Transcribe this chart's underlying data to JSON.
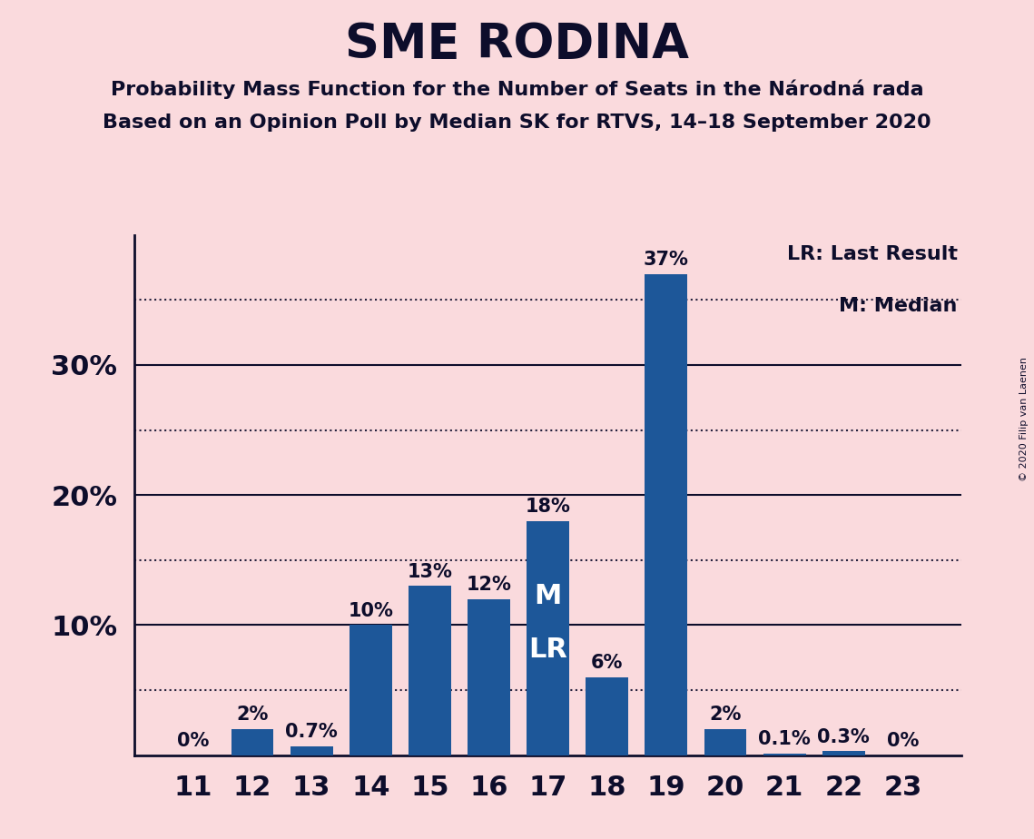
{
  "title": "SME RODINA",
  "subtitle1": "Probability Mass Function for the Number of Seats in the Národná rada",
  "subtitle2": "Based on an Opinion Poll by Median SK for RTVS, 14–18 September 2020",
  "copyright": "© 2020 Filip van Laenen",
  "categories": [
    11,
    12,
    13,
    14,
    15,
    16,
    17,
    18,
    19,
    20,
    21,
    22,
    23
  ],
  "values": [
    0.0,
    2.0,
    0.7,
    10.0,
    13.0,
    12.0,
    18.0,
    6.0,
    37.0,
    2.0,
    0.1,
    0.3,
    0.0
  ],
  "bar_labels": [
    "0%",
    "2%",
    "0.7%",
    "10%",
    "13%",
    "12%",
    "18%",
    "6%",
    "37%",
    "2%",
    "0.1%",
    "0.3%",
    "0%"
  ],
  "bar_color": "#1d5799",
  "background_color": "#fadadd",
  "text_color": "#0d0d2b",
  "grid_dotted_color": "#0d0d2b",
  "grid_solid_color": "#0d0d2b",
  "ylim": [
    0,
    40
  ],
  "solid_yticks": [
    10,
    20,
    30
  ],
  "dotted_yticks": [
    5,
    15,
    25,
    35
  ],
  "ytick_labels_positions": [
    10,
    20,
    30
  ],
  "ytick_labels": [
    "10%",
    "20%",
    "30%"
  ],
  "median_seat": 17,
  "lr_seat": 17,
  "legend_lr": "LR: Last Result",
  "legend_m": "M: Median"
}
